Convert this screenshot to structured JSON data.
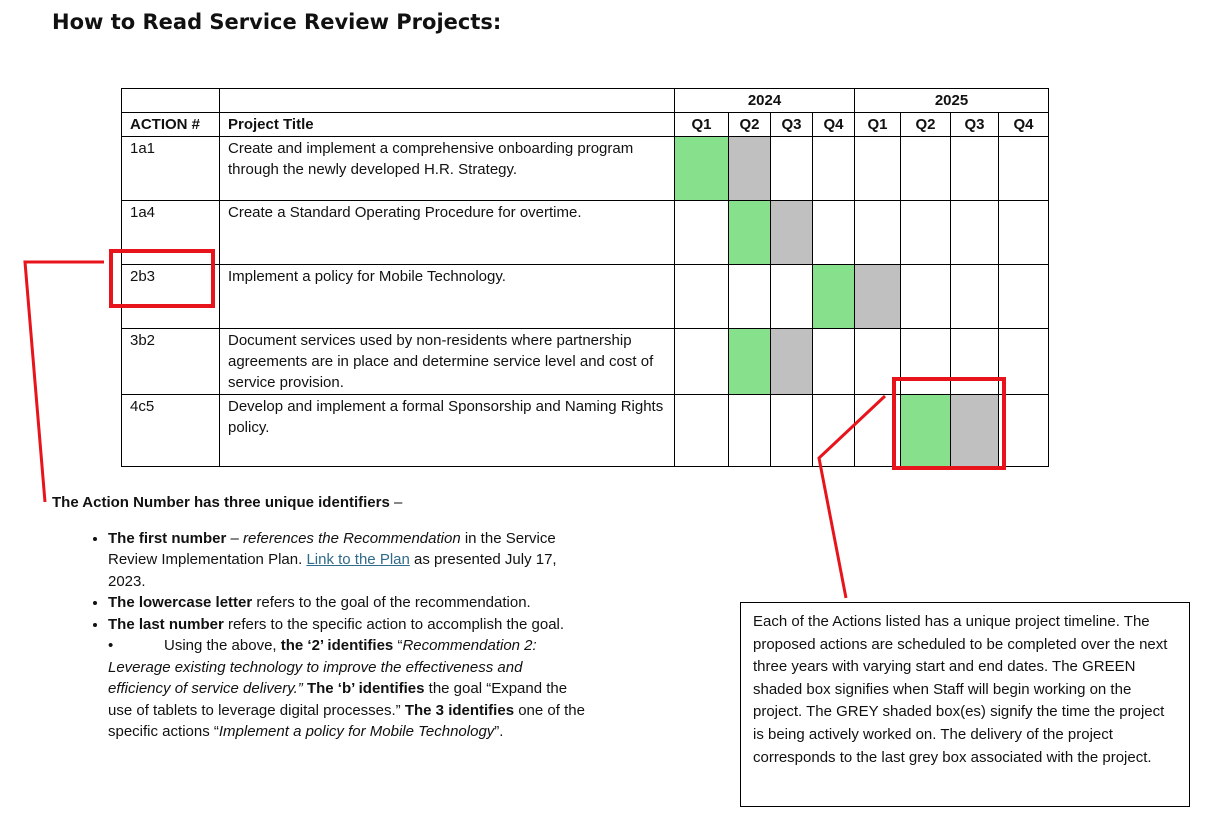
{
  "title": "How to Read Service Review Projects:",
  "table": {
    "headers": [
      "ACTION #",
      "Project Title"
    ],
    "years": [
      "2024",
      "2025"
    ],
    "quarters": [
      "Q1",
      "Q2",
      "Q3",
      "Q4",
      "Q1",
      "Q2",
      "Q3",
      "Q4"
    ],
    "colors": {
      "green": "#86e08c",
      "grey": "#c0c0c0"
    },
    "rows": [
      {
        "action": "1a1",
        "title": "Create and implement a comprehensive onboarding program through the newly developed H.R. Strategy.",
        "green": 0,
        "grey": [
          1
        ]
      },
      {
        "action": "1a4",
        "title": "Create a Standard Operating Procedure for overtime.",
        "green": 1,
        "grey": [
          2
        ]
      },
      {
        "action": "2b3",
        "title": "Implement a policy for Mobile Technology.",
        "green": 3,
        "grey": [
          4
        ]
      },
      {
        "action": "3b2",
        "title": "Document services used by non-residents where partnership agreements are in place and determine service level and cost of service provision.",
        "green": 1,
        "grey": [
          2
        ]
      },
      {
        "action": "4c5",
        "title": "Develop and implement a formal Sponsorship and Naming Rights policy.",
        "green": 5,
        "grey": [
          6
        ]
      }
    ]
  },
  "notes": {
    "intro": [
      {
        "text": "The Action Number has three unique identifiers",
        "style": "bold"
      },
      {
        "text": " –",
        "style": "normal"
      }
    ],
    "bullets": [
      [
        {
          "text": "The first number",
          "style": "bold"
        },
        {
          "text": " – ",
          "style": "normal"
        },
        {
          "text": "references the Recommendation",
          "style": "italic"
        },
        {
          "text": " in the Service Review Implementation Plan. ",
          "style": "normal"
        },
        {
          "text": "Link to the Plan",
          "style": "link"
        },
        {
          "text": " as presented July 17, 2023.",
          "style": "normal"
        }
      ],
      [
        {
          "text": "The lowercase letter",
          "style": "bold"
        },
        {
          "text": " refers to the goal of the recommendation.",
          "style": "normal"
        }
      ],
      [
        {
          "text": "The last number",
          "style": "bold"
        },
        {
          "text": " refers to the specific action to accomplish the goal.",
          "style": "normal"
        }
      ]
    ],
    "sub_bullet": [
      {
        "text": "Using the above, ",
        "style": "normal"
      },
      {
        "text": "the ‘2’ identifies",
        "style": "bold"
      },
      {
        "text": " “",
        "style": "normal"
      },
      {
        "text": "Recommendation 2: Leverage existing technology to improve the effectiveness and efficiency of service delivery.”",
        "style": "italic"
      },
      {
        "text": " The ‘b’ identifies",
        "style": "bold"
      },
      {
        "text": " the goal “Expand the use of tablets to leverage digital processes.” ",
        "style": "normal"
      },
      {
        "text": "The 3 identifies",
        "style": "bold"
      },
      {
        "text": " one of the specific actions “",
        "style": "normal"
      },
      {
        "text": "Implement a policy for Mobile Technology",
        "style": "italic"
      },
      {
        "text": "”.",
        "style": "normal"
      }
    ]
  },
  "callout": "Each of the Actions listed has a unique project timeline. The proposed actions are scheduled to be completed over the next three years with varying start and end dates. The GREEN shaded box signifies when Staff will begin working on the project. The GREY shaded box(es) signify the time the project is being actively worked on. The delivery of the project corresponds to the last grey box associated with the project."
}
